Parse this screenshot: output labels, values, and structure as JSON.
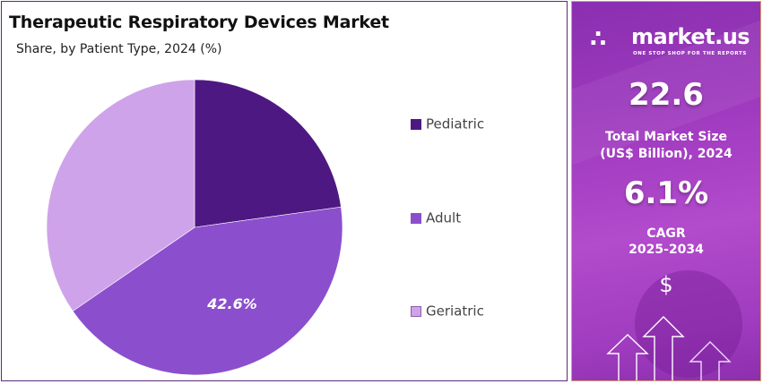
{
  "header": {
    "title": "Therapeutic Respiratory Devices Market",
    "subtitle": "Share, by Patient Type, 2024 (%)"
  },
  "legend": [
    {
      "label": "Pediatric",
      "color": "#4e1883"
    },
    {
      "label": "Adult",
      "color": "#8b4fcd"
    },
    {
      "label": "Geriatric",
      "color": "#cfa3ea"
    }
  ],
  "pie_label": "42.6%",
  "sidebar": {
    "brand": "market.us",
    "brand_mark": "∴",
    "tagline": "ONE STOP SHOP FOR THE REPORTS",
    "market_size_value": "22.6",
    "market_size_label_1": "Total Market Size",
    "market_size_label_2": "(US$ Billion), 2024",
    "cagr_value": "6.1%",
    "cagr_label_1": "CAGR",
    "cagr_label_2": "2025-2034",
    "dollar_icon": "$"
  },
  "chart_data": {
    "type": "pie",
    "title": "Therapeutic Respiratory Devices Market",
    "subtitle": "Share, by Patient Type, 2024 (%)",
    "categories": [
      "Pediatric",
      "Adult",
      "Geriatric"
    ],
    "values": [
      22.8,
      42.6,
      34.6
    ],
    "colors": [
      "#4e1883",
      "#8b4fcd",
      "#cfa3ea"
    ],
    "data_labels": {
      "Adult": "42.6%"
    },
    "legend_position": "right",
    "start_angle": "12 o'clock, clockwise"
  }
}
